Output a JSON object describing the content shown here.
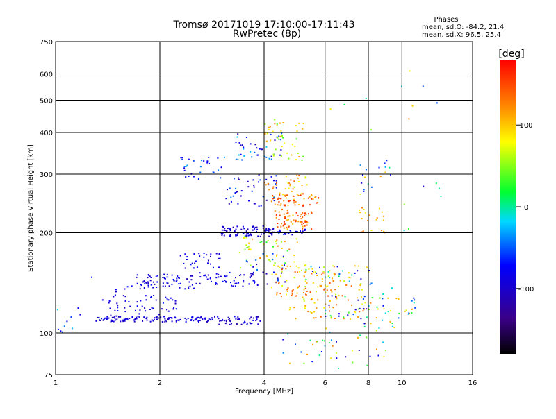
{
  "chart_data": {
    "type": "scatter",
    "title": "Tromsø 20171019 17:10:00-17:11:43",
    "subtitle": "RwPretec (8p)",
    "xlabel": "Frequency [MHz]",
    "ylabel": "Stationary phase Virtual Height [km]",
    "x_scale": "log",
    "y_scale": "log",
    "xlim": [
      1,
      16
    ],
    "ylim": [
      75,
      750
    ],
    "x_ticks": [
      1,
      2,
      4,
      6,
      8,
      10,
      16
    ],
    "y_ticks": [
      75,
      100,
      200,
      300,
      400,
      500,
      600,
      750
    ],
    "grid": true,
    "phase_box": {
      "title": "Phases",
      "line_o": "mean, sd,O: -84.2, 21.4",
      "line_x": "mean, sd,X:  96.5, 25.4"
    },
    "colorbar": {
      "label": "[deg]",
      "range": [
        -180,
        180
      ],
      "ticks": [
        100,
        0,
        -100
      ],
      "colormap": "rainbow"
    },
    "colors": {
      "low": "#000000",
      "blue": "#0000ff",
      "cyan": "#00d8ff",
      "green": "#00ff00",
      "yellow": "#ffff00",
      "orange": "#ff8000",
      "high": "#ff0000"
    },
    "clusters": [
      {
        "x": [
          1.3,
          2.9
        ],
        "y": [
          108,
          112
        ],
        "phase": [
          -110,
          -80
        ],
        "n": 120
      },
      {
        "x": [
          2.9,
          3.9
        ],
        "y": [
          106,
          112
        ],
        "phase": [
          -120,
          -80
        ],
        "n": 45
      },
      {
        "x": [
          1.4,
          2.3
        ],
        "y": [
          112,
          130
        ],
        "phase": [
          -110,
          -70
        ],
        "n": 50
      },
      {
        "x": [
          1.6,
          2.6
        ],
        "y": [
          135,
          150
        ],
        "phase": [
          -110,
          -70
        ],
        "n": 70
      },
      {
        "x": [
          2.6,
          3.9
        ],
        "y": [
          138,
          152
        ],
        "phase": [
          -110,
          -70
        ],
        "n": 55
      },
      {
        "x": [
          2.2,
          3.0
        ],
        "y": [
          155,
          175
        ],
        "phase": [
          -110,
          -70
        ],
        "n": 30
      },
      {
        "x": [
          3.0,
          4.3
        ],
        "y": [
          195,
          210
        ],
        "phase": [
          -120,
          -80
        ],
        "n": 80
      },
      {
        "x": [
          4.0,
          5.3
        ],
        "y": [
          197,
          205
        ],
        "phase": [
          -110,
          -60
        ],
        "n": 30
      },
      {
        "x": [
          2.3,
          3.1
        ],
        "y": [
          290,
          340
        ],
        "phase": [
          -100,
          -30
        ],
        "n": 30
      },
      {
        "x": [
          3.1,
          4.4
        ],
        "y": [
          240,
          300
        ],
        "phase": [
          -120,
          -40
        ],
        "n": 45
      },
      {
        "x": [
          3.3,
          4.5
        ],
        "y": [
          330,
          400
        ],
        "phase": [
          -110,
          -20
        ],
        "n": 40
      },
      {
        "x": [
          4.3,
          5.5
        ],
        "y": [
          205,
          235
        ],
        "phase": [
          100,
          170
        ],
        "n": 70
      },
      {
        "x": [
          4.2,
          5.8
        ],
        "y": [
          240,
          260
        ],
        "phase": [
          100,
          170
        ],
        "n": 55
      },
      {
        "x": [
          4.0,
          5.4
        ],
        "y": [
          260,
          300
        ],
        "phase": [
          60,
          150
        ],
        "n": 35
      },
      {
        "x": [
          4.0,
          5.2
        ],
        "y": [
          330,
          440
        ],
        "phase": [
          30,
          130
        ],
        "n": 45
      },
      {
        "x": [
          3.4,
          5.0
        ],
        "y": [
          155,
          200
        ],
        "phase": [
          20,
          130
        ],
        "n": 50
      },
      {
        "x": [
          3.5,
          4.6
        ],
        "y": [
          140,
          175
        ],
        "phase": [
          -120,
          -40
        ],
        "n": 25
      },
      {
        "x": [
          4.2,
          6.5
        ],
        "y": [
          128,
          160
        ],
        "phase": [
          60,
          150
        ],
        "n": 70
      },
      {
        "x": [
          4.6,
          7.8
        ],
        "y": [
          108,
          140
        ],
        "phase": [
          60,
          150
        ],
        "n": 70
      },
      {
        "x": [
          5.2,
          8.2
        ],
        "y": [
          140,
          160
        ],
        "phase": [
          -110,
          120
        ],
        "n": 40
      },
      {
        "x": [
          6.0,
          9.5
        ],
        "y": [
          100,
          130
        ],
        "phase": [
          -120,
          130
        ],
        "n": 50
      },
      {
        "x": [
          4.5,
          9.0
        ],
        "y": [
          78,
          100
        ],
        "phase": [
          -120,
          130
        ],
        "n": 40
      },
      {
        "x": [
          7.5,
          9.0
        ],
        "y": [
          200,
          240
        ],
        "phase": [
          80,
          140
        ],
        "n": 20
      },
      {
        "x": [
          7.5,
          9.3
        ],
        "y": [
          260,
          330
        ],
        "phase": [
          -110,
          120
        ],
        "n": 18
      },
      {
        "x": [
          8.5,
          11.0
        ],
        "y": [
          110,
          140
        ],
        "phase": [
          -80,
          130
        ],
        "n": 25
      },
      {
        "x": [
          6.0,
          13.0
        ],
        "y": [
          400,
          650
        ],
        "phase": [
          -120,
          130
        ],
        "n": 10
      },
      {
        "x": [
          1.0,
          1.2
        ],
        "y": [
          100,
          120
        ],
        "phase": [
          -110,
          -20
        ],
        "n": 10
      },
      {
        "x": [
          1.1,
          2.0
        ],
        "y": [
          125,
          150
        ],
        "phase": [
          -110,
          -70
        ],
        "n": 10
      },
      {
        "x": [
          9.0,
          13.0
        ],
        "y": [
          200,
          290
        ],
        "phase": [
          -110,
          120
        ],
        "n": 8
      }
    ]
  }
}
